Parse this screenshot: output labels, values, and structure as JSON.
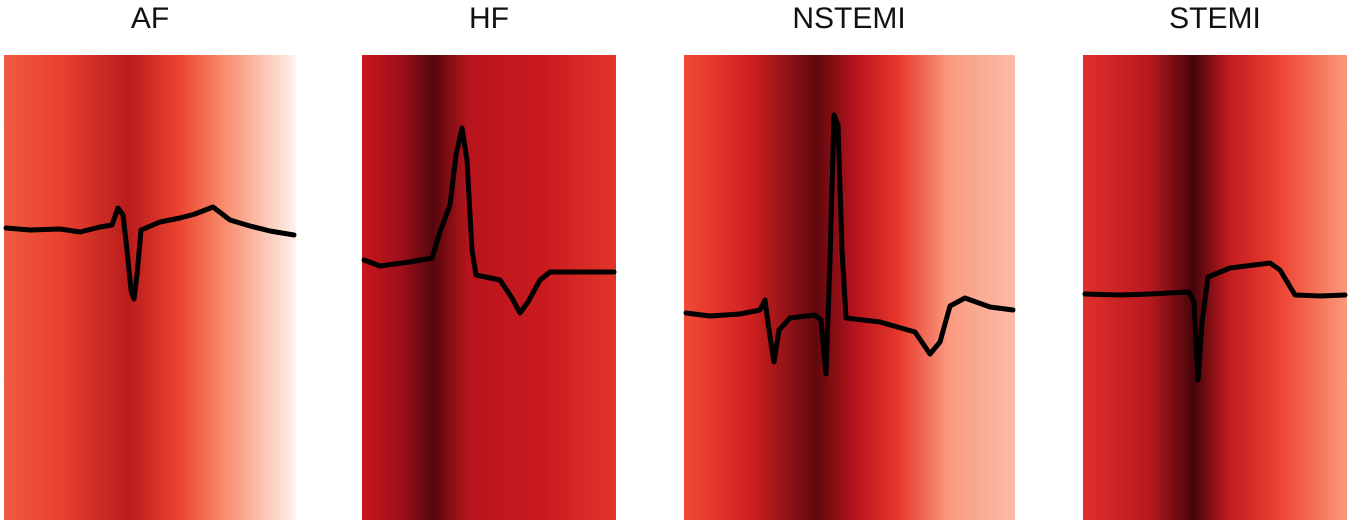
{
  "panels": [
    {
      "title": "AF"
    },
    {
      "title": "HF"
    },
    {
      "title": "NSTEMI"
    },
    {
      "title": "STEMI"
    }
  ]
}
